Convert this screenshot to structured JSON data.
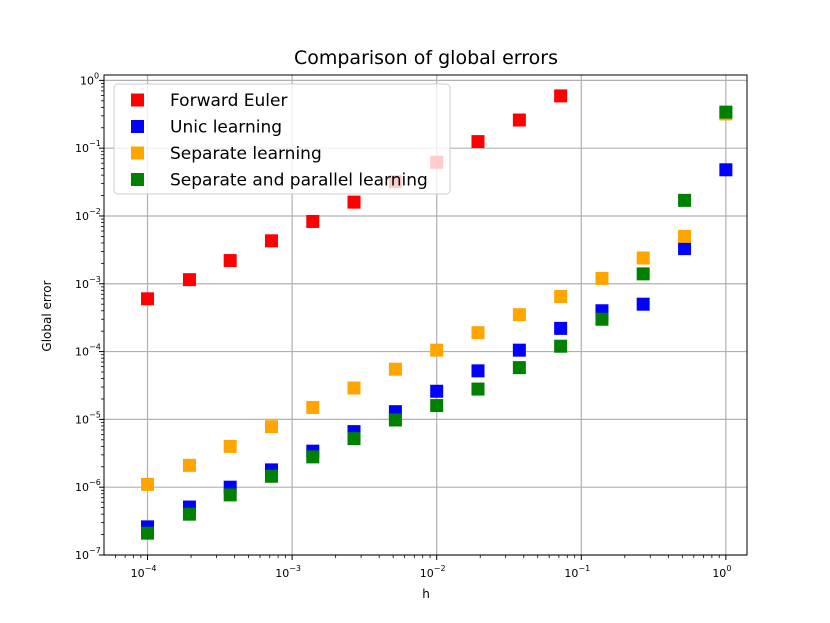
{
  "chart_data": {
    "type": "scatter",
    "title": "Comparison of global errors",
    "xlabel": "h",
    "ylabel": "Global error",
    "xscale": "log",
    "yscale": "log",
    "xlim": [
      5e-05,
      1.4
    ],
    "ylim": [
      1e-07,
      1.2
    ],
    "grid": true,
    "legend_position": "top-left",
    "x_ticks": [
      {
        "value": 0.0001,
        "base": "10",
        "exp": "−4"
      },
      {
        "value": 0.001,
        "base": "10",
        "exp": "−3"
      },
      {
        "value": 0.01,
        "base": "10",
        "exp": "−2"
      },
      {
        "value": 0.1,
        "base": "10",
        "exp": "−1"
      },
      {
        "value": 1,
        "base": "10",
        "exp": "0"
      }
    ],
    "y_ticks": [
      {
        "value": 1e-07,
        "base": "10",
        "exp": "−7"
      },
      {
        "value": 1e-06,
        "base": "10",
        "exp": "−6"
      },
      {
        "value": 1e-05,
        "base": "10",
        "exp": "−5"
      },
      {
        "value": 0.0001,
        "base": "10",
        "exp": "−4"
      },
      {
        "value": 0.001,
        "base": "10",
        "exp": "−3"
      },
      {
        "value": 0.01,
        "base": "10",
        "exp": "−2"
      },
      {
        "value": 0.1,
        "base": "10",
        "exp": "−1"
      },
      {
        "value": 1,
        "base": "10",
        "exp": "0"
      }
    ],
    "x": [
      0.0001,
      0.000195,
      0.000373,
      0.00072,
      0.00139,
      0.00268,
      0.00518,
      0.01,
      0.0193,
      0.0373,
      0.072,
      0.139,
      0.268,
      0.518,
      1.0
    ],
    "series": [
      {
        "name": "Forward Euler",
        "color": "#ff0000",
        "values": [
          0.0006,
          0.00115,
          0.0022,
          0.0043,
          0.0083,
          0.016,
          0.032,
          0.062,
          0.125,
          0.26,
          0.59,
          null,
          null,
          null,
          null
        ]
      },
      {
        "name": "Unic learning",
        "color": "#0000ff",
        "values": [
          2.6e-07,
          5.1e-07,
          1e-06,
          1.8e-06,
          3.4e-06,
          6.6e-06,
          1.3e-05,
          2.6e-05,
          5.2e-05,
          0.000105,
          0.00022,
          0.0004,
          0.0005,
          0.0033,
          0.048
        ]
      },
      {
        "name": "Separate learning",
        "color": "#ffa500",
        "values": [
          1.1e-06,
          2.1e-06,
          4e-06,
          7.8e-06,
          1.5e-05,
          2.9e-05,
          5.5e-05,
          0.000105,
          0.00019,
          0.00035,
          0.00065,
          0.0012,
          0.0024,
          0.005,
          0.32
        ]
      },
      {
        "name": "Separate and parallel learning",
        "color": "#008000",
        "values": [
          2.1e-07,
          4e-07,
          7.7e-07,
          1.45e-06,
          2.8e-06,
          5.2e-06,
          9.8e-06,
          1.6e-05,
          2.8e-05,
          5.8e-05,
          0.00012,
          0.0003,
          0.0014,
          0.017,
          0.34
        ]
      }
    ]
  }
}
